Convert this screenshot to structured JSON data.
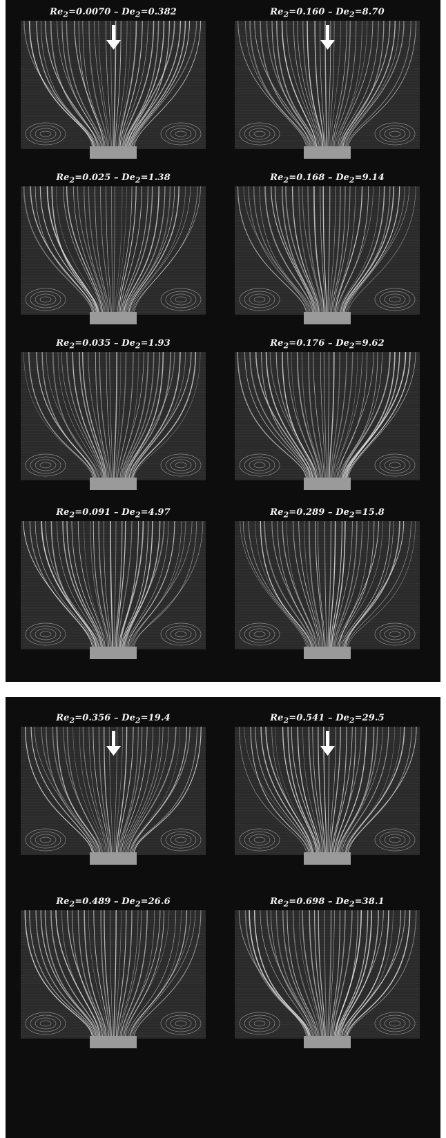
{
  "plates": [
    {
      "panels": [
        {
          "re": "0.0070",
          "de": "0.382",
          "arrow": true,
          "inflow": "Re2=0.0070 – De2=0.382"
        },
        {
          "re": "0.160",
          "de": "8.70",
          "arrow": true,
          "inflow": "Re2=0.160 – De2=8.70"
        },
        {
          "re": "0.025",
          "de": "1.38",
          "arrow": false,
          "inflow": "Re2=0.025 – De2=1.38"
        },
        {
          "re": "0.168",
          "de": "9.14",
          "arrow": false,
          "inflow": "Re2=0.168 – De2=9.14"
        },
        {
          "re": "0.035",
          "de": "1.93",
          "arrow": false,
          "inflow": "Re2=0.035 – De2=1.93"
        },
        {
          "re": "0.176",
          "de": "9.62",
          "arrow": false,
          "inflow": "Re2=0.176 – De2=9.62"
        },
        {
          "re": "0.091",
          "de": "4.97",
          "arrow": false,
          "inflow": "Re2=0.091 – De2=4.97"
        },
        {
          "re": "0.289",
          "de": "15.8",
          "arrow": false,
          "inflow": "Re2=0.289 – De2=15.8"
        }
      ]
    },
    {
      "panels": [
        {
          "re": "0.356",
          "de": "19.4",
          "arrow": true,
          "inflow": "Re2=0.356 – De2=19.4"
        },
        {
          "re": "0.541",
          "de": "29.5",
          "arrow": true,
          "inflow": "Re2=0.541 – De2=29.5"
        },
        {
          "re": "0.489",
          "de": "26.6",
          "arrow": false,
          "inflow": "Re2=0.489 – De2=26.6"
        },
        {
          "re": "0.698",
          "de": "38.1",
          "arrow": false,
          "inflow": "Re2=0.698 – De2=38.1"
        }
      ]
    }
  ],
  "colors": {
    "background": "#0d0d0d",
    "streak": "#e6e6e6",
    "text": "#f2f2f2"
  }
}
